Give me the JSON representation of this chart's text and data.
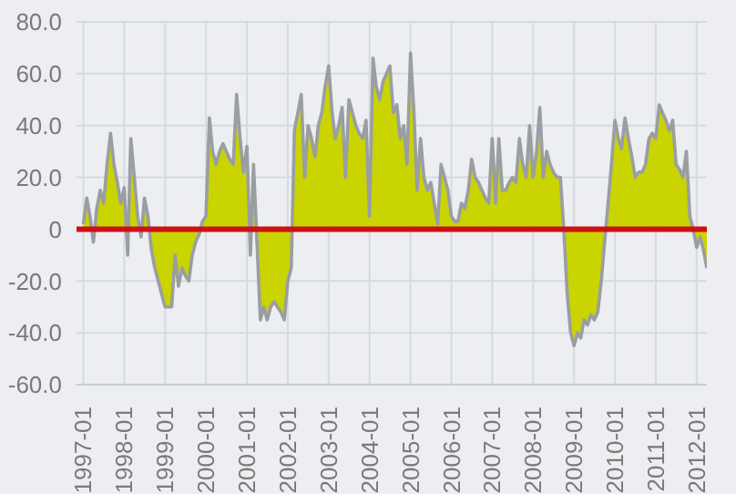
{
  "chart_data": {
    "type": "area",
    "x": [
      "1997-01",
      "1997-02",
      "1997-03",
      "1997-04",
      "1997-05",
      "1997-06",
      "1997-07",
      "1997-08",
      "1997-09",
      "1997-10",
      "1997-11",
      "1997-12",
      "1998-01",
      "1998-02",
      "1998-03",
      "1998-04",
      "1998-05",
      "1998-06",
      "1998-07",
      "1998-08",
      "1998-09",
      "1998-10",
      "1998-11",
      "1998-12",
      "1999-01",
      "1999-02",
      "1999-03",
      "1999-04",
      "1999-05",
      "1999-06",
      "1999-07",
      "1999-08",
      "1999-09",
      "1999-10",
      "1999-11",
      "1999-12",
      "2000-01",
      "2000-02",
      "2000-03",
      "2000-04",
      "2000-05",
      "2000-06",
      "2000-07",
      "2000-08",
      "2000-09",
      "2000-10",
      "2000-11",
      "2000-12",
      "2001-01",
      "2001-02",
      "2001-03",
      "2001-04",
      "2001-05",
      "2001-06",
      "2001-07",
      "2001-08",
      "2001-09",
      "2001-10",
      "2001-11",
      "2001-12",
      "2002-01",
      "2002-02",
      "2002-03",
      "2002-04",
      "2002-05",
      "2002-06",
      "2002-07",
      "2002-08",
      "2002-09",
      "2002-10",
      "2002-11",
      "2002-12",
      "2003-01",
      "2003-02",
      "2003-03",
      "2003-04",
      "2003-05",
      "2003-06",
      "2003-07",
      "2003-08",
      "2003-09",
      "2003-10",
      "2003-11",
      "2003-12",
      "2004-01",
      "2004-02",
      "2004-03",
      "2004-04",
      "2004-05",
      "2004-06",
      "2004-07",
      "2004-08",
      "2004-09",
      "2004-10",
      "2004-11",
      "2004-12",
      "2005-01",
      "2005-02",
      "2005-03",
      "2005-04",
      "2005-05",
      "2005-06",
      "2005-07",
      "2005-08",
      "2005-09",
      "2005-10",
      "2005-11",
      "2005-12",
      "2006-01",
      "2006-02",
      "2006-03",
      "2006-04",
      "2006-05",
      "2006-06",
      "2006-07",
      "2006-08",
      "2006-09",
      "2006-10",
      "2006-11",
      "2006-12",
      "2007-01",
      "2007-02",
      "2007-03",
      "2007-04",
      "2007-05",
      "2007-06",
      "2007-07",
      "2007-08",
      "2007-09",
      "2007-10",
      "2007-11",
      "2007-12",
      "2008-01",
      "2008-02",
      "2008-03",
      "2008-04",
      "2008-05",
      "2008-06",
      "2008-07",
      "2008-08",
      "2008-09",
      "2008-10",
      "2008-11",
      "2008-12",
      "2009-01",
      "2009-02",
      "2009-03",
      "2009-04",
      "2009-05",
      "2009-06",
      "2009-07",
      "2009-08",
      "2009-09",
      "2009-10",
      "2009-11",
      "2009-12",
      "2010-01",
      "2010-02",
      "2010-03",
      "2010-04",
      "2010-05",
      "2010-06",
      "2010-07",
      "2010-08",
      "2010-09",
      "2010-10",
      "2010-11",
      "2010-12",
      "2011-01",
      "2011-02",
      "2011-03",
      "2011-04",
      "2011-05",
      "2011-06",
      "2011-07",
      "2011-08",
      "2011-09",
      "2011-10",
      "2011-11",
      "2011-12",
      "2012-01",
      "2012-02",
      "2012-03",
      "2012-04"
    ],
    "series": [
      {
        "color": "#c9d400",
        "values": [
          2,
          12,
          5,
          -5,
          8,
          15,
          10,
          25,
          37,
          25,
          18,
          10,
          16,
          -10,
          35,
          20,
          5,
          -3,
          12,
          5,
          -8,
          -15,
          -20,
          -25,
          -30,
          -30,
          -30,
          -10,
          -22,
          -15,
          -18,
          -20,
          -10,
          -5,
          -2,
          3,
          5,
          43,
          30,
          25,
          30,
          33,
          30,
          27,
          25,
          52,
          35,
          22,
          32,
          -10,
          25,
          -5,
          -35,
          -30,
          -35,
          -30,
          -28,
          -30,
          -32,
          -35,
          -20,
          -15,
          38,
          45,
          52,
          20,
          40,
          35,
          28,
          40,
          45,
          55,
          63,
          45,
          35,
          40,
          47,
          20,
          50,
          45,
          40,
          37,
          35,
          42,
          5,
          66,
          55,
          50,
          57,
          60,
          63,
          45,
          48,
          35,
          40,
          25,
          68,
          45,
          15,
          35,
          20,
          15,
          18,
          10,
          2,
          25,
          20,
          15,
          5,
          3,
          3,
          10,
          8,
          15,
          27,
          20,
          18,
          15,
          12,
          10,
          35,
          10,
          35,
          15,
          15,
          18,
          20,
          18,
          35,
          25,
          20,
          40,
          20,
          30,
          47,
          20,
          30,
          25,
          22,
          20,
          20,
          0,
          -25,
          -40,
          -45,
          -40,
          -42,
          -35,
          -37,
          -33,
          -35,
          -32,
          -20,
          -5,
          10,
          25,
          42,
          35,
          31,
          43,
          35,
          28,
          20,
          22,
          22,
          25,
          35,
          37,
          35,
          48,
          45,
          42,
          38,
          42,
          25,
          23,
          20,
          30,
          5,
          0,
          -7,
          -3,
          -8,
          -15
        ]
      }
    ],
    "xlim": [
      "1996-11",
      "2012-04"
    ],
    "xticks": [
      "1997-01",
      "1998-01",
      "1999-01",
      "2000-01",
      "2001-01",
      "2002-01",
      "2003-01",
      "2004-01",
      "2005-01",
      "2006-01",
      "2007-01",
      "2008-01",
      "2009-01",
      "2010-01",
      "2011-01",
      "2012-01"
    ],
    "ylim": [
      -60,
      80
    ],
    "yticks": [
      {
        "value": -60,
        "label": "-60.0"
      },
      {
        "value": -40,
        "label": "-40.0"
      },
      {
        "value": -20,
        "label": "-20.0"
      },
      0,
      {
        "value": 20,
        "label": "20.0"
      },
      {
        "value": 40,
        "label": "40.0"
      },
      {
        "value": 60,
        "label": "60.0"
      },
      {
        "value": 80,
        "label": "80.0"
      }
    ],
    "ref_lines": [
      {
        "axis": "y",
        "value": 0,
        "color": "#cc1111"
      }
    ],
    "grid": true
  }
}
